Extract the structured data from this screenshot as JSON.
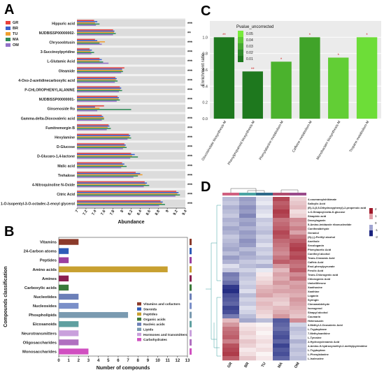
{
  "panels": {
    "a": "A",
    "b": "B",
    "c": "C",
    "d": "D"
  },
  "chart_data": [
    {
      "type": "bar",
      "panel": "A",
      "xlabel": "Abundance",
      "xlim": [
        7,
        9.4
      ],
      "xticks": [
        "7",
        "7.2",
        "7.4",
        "7.6",
        "7.8",
        "8",
        "8.2",
        "8.4",
        "8.6",
        "8.8",
        "9",
        "9.2",
        "9.4"
      ],
      "legend": {
        "placement": "top-left",
        "groups": [
          "GR",
          "BR",
          "TU",
          "MA",
          "OM"
        ]
      },
      "group_colors": [
        "#e8413c",
        "#3a5fcd",
        "#f0a030",
        "#2e8b57",
        "#9370c8"
      ],
      "compounds": [
        {
          "name": "Hippuric acid",
          "sig": "***",
          "values": [
            7.38,
            7.45,
            7.4,
            7.5,
            7.42
          ]
        },
        {
          "name": "MJDBISSP00000002-",
          "sig": "**",
          "values": [
            7.8,
            7.83,
            7.82,
            7.86,
            7.8
          ]
        },
        {
          "name": "Chrysoobtusin",
          "sig": "***",
          "values": [
            7.4,
            7.45,
            7.62,
            7.5,
            7.55
          ]
        },
        {
          "name": "3-Succinoylpyridine",
          "sig": "***",
          "values": [
            7.28,
            7.33,
            7.3,
            7.38,
            7.32
          ]
        },
        {
          "name": "L-Glutamic Acid",
          "sig": "***",
          "values": [
            7.5,
            7.55,
            7.5,
            7.58,
            7.7
          ]
        },
        {
          "name": "Oleamide",
          "sig": "***",
          "values": [
            8.05,
            8.0,
            8.0,
            8.02,
            7.98
          ]
        },
        {
          "name": "4-Oxo-2-azetidinecarboxylic acid",
          "sig": "***",
          "values": [
            7.85,
            7.88,
            7.86,
            7.9,
            7.84
          ]
        },
        {
          "name": "P-CHLOROPHENYLALANINE",
          "sig": "***",
          "values": [
            7.95,
            7.98,
            7.96,
            8.0,
            7.93
          ]
        },
        {
          "name": "MJDBISSP00000001-",
          "sig": "***",
          "values": [
            7.9,
            7.93,
            7.92,
            7.95,
            7.88
          ]
        },
        {
          "name": "Ginsenoside Ro",
          "sig": "***",
          "values": [
            7.6,
            7.4,
            7.5,
            8.2,
            7.45
          ]
        },
        {
          "name": "Gamma-delta-Dioxovaleric acid",
          "sig": "***",
          "values": [
            7.55,
            7.58,
            7.6,
            7.6,
            7.55
          ]
        },
        {
          "name": "Fumitremorgin B",
          "sig": "***",
          "values": [
            7.7,
            7.72,
            7.68,
            7.75,
            7.66
          ]
        },
        {
          "name": "Hexylamine",
          "sig": "***",
          "values": [
            8.15,
            8.18,
            8.16,
            8.2,
            8.12
          ]
        },
        {
          "name": "D-Glucose",
          "sig": "***",
          "values": [
            8.05,
            8.08,
            8.06,
            8.1,
            8.02
          ]
        },
        {
          "name": "D-Glucaro-1,4-lactone",
          "sig": "***",
          "values": [
            8.2,
            8.28,
            8.22,
            8.35,
            8.18
          ]
        },
        {
          "name": "Malic acid",
          "sig": "***",
          "values": [
            8.0,
            8.05,
            8.02,
            8.1,
            7.98
          ]
        },
        {
          "name": "Trehalose",
          "sig": "***",
          "values": [
            8.3,
            8.4,
            8.45,
            8.35,
            8.25
          ]
        },
        {
          "name": "4-Nitroquinoline N-Oxide",
          "sig": "***",
          "values": [
            8.5,
            8.55,
            8.52,
            8.6,
            8.48
          ]
        },
        {
          "name": "Citric Acid",
          "sig": "***",
          "values": [
            9.2,
            9.25,
            9.22,
            9.28,
            9.18
          ]
        },
        {
          "name": "1-O-Isopentyl-3-O-octadec-2-enoyl glycerol",
          "sig": "***",
          "values": [
            8.85,
            8.9,
            8.88,
            8.95,
            8.82
          ]
        }
      ]
    },
    {
      "type": "bar",
      "panel": "B",
      "ylabel": "Compounds classification",
      "xlabel": "Number of compounds",
      "xlim": [
        0,
        13
      ],
      "xticks": [
        "0",
        "1",
        "2",
        "3",
        "4",
        "5",
        "6",
        "7",
        "8",
        "9",
        "10",
        "11",
        "12",
        "13"
      ],
      "categories": [
        "Vitamins",
        "24-Carbon atoms",
        "Peptides",
        "Amino acids",
        "Amines",
        "Carboxylic acids",
        "Nucleotides",
        "Nucleosides",
        "Phospholipids",
        "Eicosanoids",
        "Neurotransmitters",
        "Oligosaccharides",
        "Monosaccharides"
      ],
      "values": [
        2,
        1,
        1,
        11,
        1,
        1,
        2,
        2,
        7,
        2,
        2,
        2,
        3
      ],
      "bar_colors": [
        "#8b3a2a",
        "#2e5cb8",
        "#9b3fa0",
        "#c8a030",
        "#8b2050",
        "#3a7a3a",
        "#6b7fb8",
        "#7a8fc8",
        "#7a9ab0",
        "#5fa0a0",
        "#c9a0dc",
        "#b070c0",
        "#d050c0"
      ],
      "legend": {
        "placement": "right",
        "entries": [
          {
            "label": "Vitamins and cofactors",
            "color": "#8b3a2a"
          },
          {
            "label": "Steroids",
            "color": "#2e5cb8"
          },
          {
            "label": "Peptides",
            "color": "#c8a030"
          },
          {
            "label": "Organic acids",
            "color": "#3a7a3a"
          },
          {
            "label": "Nucleic acids",
            "color": "#6b7fb8"
          },
          {
            "label": "Lipids",
            "color": "#7a9ab0"
          },
          {
            "label": "Hormones and transmitters",
            "color": "#c9a0dc"
          },
          {
            "label": "Carbohydrates",
            "color": "#d050c0"
          }
        ]
      }
    },
    {
      "type": "bar",
      "panel": "C",
      "ylabel": "Enrichment ratio",
      "ylim": [
        0,
        1.2
      ],
      "yticks": [
        "0.0",
        "0.2",
        "0.4",
        "0.6",
        "0.8",
        "1.0"
      ],
      "legend": {
        "title": "Pvalue_uncorrected",
        "placement": "top-left",
        "ticks": [
          "0.05",
          "0.04",
          "0.03",
          "0.02",
          "0.01"
        ]
      },
      "categories": [
        "Glucosinolate biosynthesis-M",
        "Phenylpropanoid biosynthesis-M",
        "Phenylalanine metabolism-M",
        "Caffeine metabolism-M",
        "Monobactam biosynthesis-M",
        "Tropane metabolism-M"
      ],
      "values": [
        1.0,
        0.58,
        0.7,
        1.0,
        0.75,
        1.0
      ],
      "pvalue": [
        0.005,
        0.002,
        0.03,
        0.025,
        0.04,
        0.045
      ],
      "sig": [
        "**",
        "**",
        "*",
        "*",
        "*",
        "*"
      ]
    },
    {
      "type": "heatmap",
      "panel": "D",
      "columns": [
        "GR",
        "BR",
        "TU",
        "MA",
        "OM"
      ],
      "colorbar": {
        "ticks": [
          "2",
          "1",
          "0",
          "-1",
          "-2"
        ],
        "low": "#1a237e",
        "mid": "#ffffff",
        "high": "#a0192a"
      },
      "rows": [
        "4-coumaroylshikimate",
        "Salicylic Acid",
        "(E)-3-(3,5-Dihydroxyphenyl)-2-propenoic acid",
        "1-O-Sinapoyl-beta-D-glucose",
        "Sinapinic acid",
        "Deoxyloganin",
        "5-Amino-imidazole ribonucleotide",
        "Coniferaldehyde",
        "Geraniol",
        "(S)-(-)-Perillyl alcohol",
        "Anethole",
        "Secologanin",
        "Phenylacetic Acid",
        "Coniferyl alcohol",
        "Trans-Cinnamic Acid",
        "Caffeic Acid",
        "Enol-phenylpyruvate",
        "Ferulic Acid",
        "Trans-Chlorogenic acid",
        "Chlorogenic Acid",
        "Umbelliferone",
        "Xanthosine",
        "Xanthine",
        "Loganin",
        "Syringin",
        "Cinnamaldehyde",
        "Isoeugenol",
        "Sinapyl alcohol",
        "Coumarin",
        "Heteroauxin",
        "3-Methyl-2-Oxovaleric Acid",
        "L-Tryptophane",
        "7-Methylxanthine",
        "L-Tyrosine",
        "2-Hydroxycinnamic Acid",
        "4-Amino-5-hydroxymethyl-2-methylpyrimidine",
        "L-Tryptophan",
        "L-Phenylalanine",
        "L-Isoleucine"
      ],
      "values": [
        [
          -0.6,
          -0.9,
          -0.3,
          1.6,
          0.4
        ],
        [
          -0.5,
          -0.8,
          -0.2,
          1.4,
          0.5
        ],
        [
          -0.7,
          -1.0,
          -0.4,
          1.5,
          0.6
        ],
        [
          -0.6,
          -0.9,
          -0.3,
          1.7,
          0.3
        ],
        [
          -0.5,
          -1.1,
          -0.2,
          1.6,
          0.4
        ],
        [
          -0.7,
          -0.8,
          -0.5,
          1.2,
          1.0
        ],
        [
          -0.6,
          -0.9,
          -0.4,
          1.3,
          0.9
        ],
        [
          -0.8,
          -0.7,
          -0.5,
          1.4,
          1.1
        ],
        [
          -0.7,
          -0.9,
          -0.6,
          1.6,
          0.8
        ],
        [
          -0.5,
          -0.8,
          -0.4,
          1.5,
          1.2
        ],
        [
          -0.6,
          -1.0,
          -0.5,
          1.3,
          1.4
        ],
        [
          -0.7,
          -0.9,
          -0.3,
          1.2,
          1.6
        ],
        [
          -0.8,
          -0.6,
          -0.5,
          1.1,
          1.7
        ],
        [
          -0.6,
          -0.8,
          -0.4,
          1.0,
          1.5
        ],
        [
          -0.9,
          -0.7,
          -0.6,
          1.2,
          1.6
        ],
        [
          -0.7,
          -0.5,
          -0.4,
          1.4,
          1.3
        ],
        [
          -0.3,
          -0.6,
          -0.7,
          0.9,
          1.2
        ],
        [
          -0.5,
          -0.4,
          -0.2,
          0.6,
          1.4
        ],
        [
          -1.2,
          -0.6,
          0.2,
          0.8,
          1.0
        ],
        [
          -1.1,
          -0.5,
          0.3,
          0.7,
          1.2
        ],
        [
          -1.3,
          -0.4,
          0.4,
          0.9,
          0.8
        ],
        [
          -1.8,
          -0.5,
          0.6,
          0.7,
          0.9
        ],
        [
          -1.9,
          -0.3,
          0.7,
          0.8,
          0.8
        ],
        [
          -1.6,
          -0.6,
          0.8,
          0.6,
          0.7
        ],
        [
          -1.5,
          -0.4,
          0.5,
          0.5,
          0.9
        ],
        [
          -1.4,
          -0.5,
          0.6,
          0.4,
          0.8
        ],
        [
          -1.7,
          -0.3,
          0.5,
          0.6,
          0.7
        ],
        [
          -1.6,
          -0.4,
          0.4,
          0.7,
          0.6
        ],
        [
          -1.2,
          -0.6,
          0.3,
          0.9,
          0.5
        ],
        [
          0.6,
          -0.8,
          -0.6,
          -1.5,
          1.0
        ],
        [
          0.9,
          0.2,
          0.1,
          -1.4,
          -0.4
        ],
        [
          1.2,
          0.3,
          0.2,
          -1.3,
          -0.6
        ],
        [
          1.3,
          0.4,
          0.1,
          -1.5,
          -0.5
        ],
        [
          1.4,
          0.3,
          0.2,
          -1.6,
          -0.4
        ],
        [
          1.1,
          0.5,
          0.3,
          -1.4,
          -0.7
        ],
        [
          1.5,
          0.4,
          0.2,
          -1.7,
          -0.5
        ],
        [
          1.6,
          0.2,
          0.3,
          -1.5,
          -0.6
        ],
        [
          1.7,
          0.3,
          0.1,
          -1.6,
          -0.5
        ],
        [
          1.4,
          0.5,
          0.2,
          -1.4,
          -0.6
        ]
      ]
    }
  ]
}
